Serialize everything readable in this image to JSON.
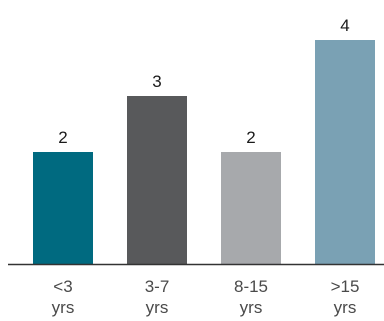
{
  "chart_data": {
    "type": "bar",
    "categories": [
      [
        "<3",
        "yrs"
      ],
      [
        "3-7",
        "yrs"
      ],
      [
        "8-15",
        "yrs"
      ],
      [
        ">15",
        "yrs"
      ]
    ],
    "values": [
      2,
      3,
      2,
      4
    ],
    "bar_colors": [
      "#006a80",
      "#58595b",
      "#a7a9ac",
      "#7aa1b4"
    ],
    "axis_color": "#333333",
    "ylim": [
      0,
      4
    ],
    "grid": false,
    "data_labels": true
  }
}
